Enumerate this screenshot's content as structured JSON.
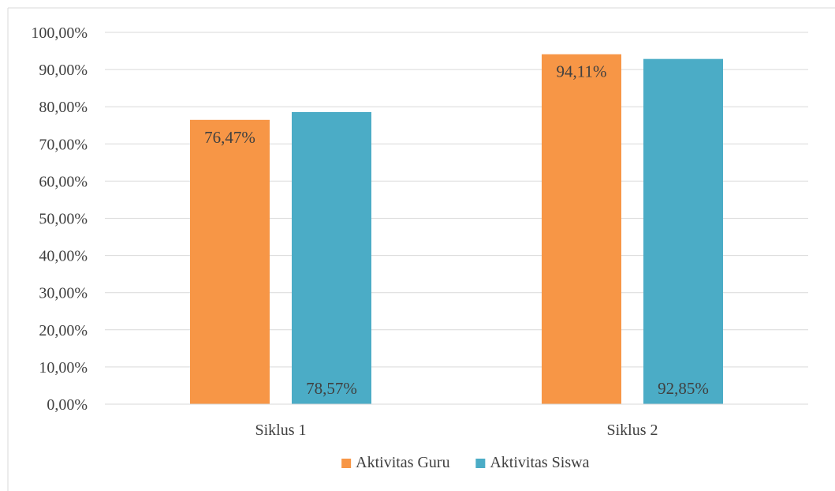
{
  "chart_data": {
    "type": "bar",
    "title": "",
    "xlabel": "",
    "ylabel": "",
    "categories": [
      "Siklus 1",
      "Siklus 2"
    ],
    "series": [
      {
        "name": "Aktivitas Guru",
        "color": "#F79646",
        "values": [
          76.47,
          94.11
        ],
        "labels": [
          "76,47%",
          "94,11%"
        ],
        "label_position": "inside-top"
      },
      {
        "name": "Aktivitas Siswa",
        "color": "#4BACC6",
        "values": [
          78.57,
          92.85
        ],
        "labels": [
          "78,57%",
          "92,85%"
        ],
        "label_position": "inside-base"
      }
    ],
    "ylim": [
      0,
      100
    ],
    "yticks": [
      0,
      10,
      20,
      30,
      40,
      50,
      60,
      70,
      80,
      90,
      100
    ],
    "ytick_labels": [
      "0,00%",
      "10,00%",
      "20,00%",
      "30,00%",
      "40,00%",
      "50,00%",
      "60,00%",
      "70,00%",
      "80,00%",
      "90,00%",
      "100,00%"
    ],
    "grid": true,
    "legend": "bottom-center"
  }
}
